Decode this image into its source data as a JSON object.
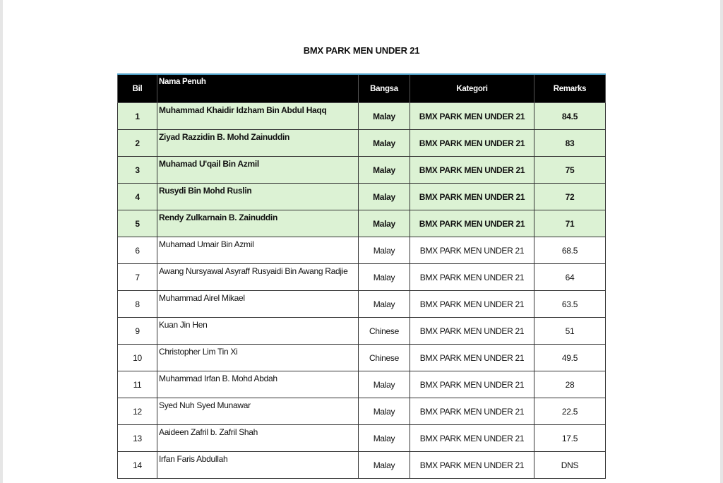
{
  "title": "BMX PARK MEN UNDER 21",
  "headers": [
    "Bil",
    "Nama Penuh",
    "Bangsa",
    "Kategori",
    "Remarks"
  ],
  "highlight_color": "#dcf2d4",
  "rows": [
    [
      "1",
      "Muhammad Khaidir Idzham Bin Abdul Haqq",
      "Malay",
      "BMX PARK MEN UNDER 21",
      "84.5"
    ],
    [
      "2",
      "Ziyad Razzidin B. Mohd Zainuddin",
      "Malay",
      "BMX PARK MEN UNDER 21",
      "83"
    ],
    [
      "3",
      "Muhamad U'qail Bin Azmil",
      "Malay",
      "BMX PARK MEN UNDER 21",
      "75"
    ],
    [
      "4",
      "Rusydi Bin Mohd Ruslin",
      "Malay",
      "BMX PARK MEN UNDER 21",
      "72"
    ],
    [
      "5",
      "Rendy Zulkarnain B. Zainuddin",
      "Malay",
      "BMX PARK MEN UNDER 21",
      "71"
    ],
    [
      "6",
      "Muhamad Umair Bin Azmil",
      "Malay",
      "BMX PARK MEN UNDER 21",
      "68.5"
    ],
    [
      "7",
      "Awang Nursyawal Asyraff Rusyaidi Bin Awang Radjie",
      "Malay",
      "BMX PARK MEN UNDER 21",
      "64"
    ],
    [
      "8",
      "Muhammad Airel Mikael",
      "Malay",
      "BMX PARK MEN UNDER 21",
      "63.5"
    ],
    [
      "9",
      "Kuan Jin Hen",
      "Chinese",
      "BMX PARK MEN UNDER 21",
      "51"
    ],
    [
      "10",
      "Christopher Lim Tin Xi",
      "Chinese",
      "BMX PARK MEN UNDER 21",
      "49.5"
    ],
    [
      "11",
      "Muhammad Irfan B. Mohd Abdah",
      "Malay",
      "BMX PARK MEN UNDER 21",
      "28"
    ],
    [
      "12",
      "Syed Nuh Syed Munawar",
      "Malay",
      "BMX PARK MEN UNDER 21",
      "22.5"
    ],
    [
      "13",
      "Aaideen Zafril b. Zafril Shah",
      "Malay",
      "BMX PARK MEN UNDER 21",
      "17.5"
    ],
    [
      "14",
      "Irfan Faris Abdullah",
      "Malay",
      "BMX PARK MEN UNDER 21",
      "DNS"
    ]
  ]
}
